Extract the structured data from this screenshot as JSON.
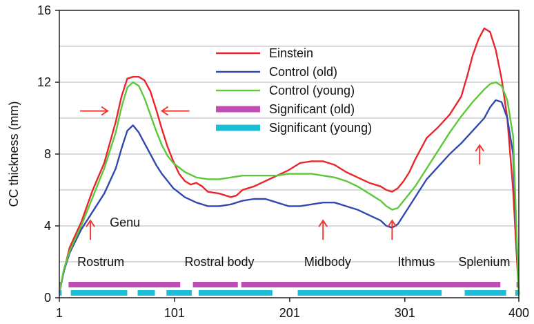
{
  "chart_data": {
    "type": "line",
    "xlabel": "",
    "ylabel": "CC thickness (mm)",
    "xlim": [
      1,
      400
    ],
    "ylim": [
      0,
      16
    ],
    "x_ticks": [
      1,
      101,
      201,
      301,
      400
    ],
    "y_ticks": [
      0,
      4,
      8,
      12,
      16
    ],
    "y_gridlines": [
      2,
      4,
      6,
      8,
      10,
      12,
      14
    ],
    "grid": "horizontal",
    "legend_position": "top-center",
    "series": [
      {
        "name": "Einstein",
        "color": "#e8262b",
        "x": [
          1,
          5,
          10,
          20,
          30,
          40,
          50,
          55,
          60,
          65,
          70,
          75,
          80,
          85,
          90,
          95,
          100,
          105,
          110,
          115,
          120,
          125,
          130,
          140,
          150,
          155,
          160,
          170,
          180,
          190,
          200,
          210,
          220,
          230,
          240,
          250,
          260,
          270,
          280,
          285,
          290,
          295,
          300,
          305,
          310,
          320,
          330,
          340,
          350,
          355,
          360,
          365,
          370,
          375,
          380,
          385,
          390,
          395,
          400
        ],
        "y": [
          0.3,
          1.5,
          2.8,
          4.2,
          6.0,
          7.5,
          9.8,
          11.2,
          12.2,
          12.3,
          12.3,
          12.1,
          11.5,
          10.5,
          9.4,
          8.4,
          7.6,
          6.9,
          6.5,
          6.3,
          6.4,
          6.2,
          5.9,
          5.8,
          5.6,
          5.7,
          6.0,
          6.2,
          6.5,
          6.8,
          7.1,
          7.5,
          7.6,
          7.6,
          7.4,
          7.0,
          6.7,
          6.4,
          6.2,
          6.0,
          5.9,
          6.1,
          6.5,
          7.0,
          7.7,
          8.9,
          9.5,
          10.2,
          11.2,
          12.3,
          13.5,
          14.4,
          15.0,
          14.8,
          13.8,
          12.2,
          10.0,
          6.0,
          0.2
        ]
      },
      {
        "name": "Control (old)",
        "color": "#3347b0",
        "x": [
          1,
          5,
          10,
          20,
          30,
          40,
          50,
          55,
          60,
          65,
          70,
          75,
          80,
          85,
          90,
          95,
          100,
          110,
          120,
          130,
          140,
          150,
          160,
          170,
          180,
          190,
          200,
          210,
          220,
          230,
          240,
          250,
          260,
          270,
          280,
          285,
          290,
          295,
          300,
          310,
          320,
          330,
          340,
          350,
          360,
          370,
          375,
          380,
          385,
          390,
          395,
          400
        ],
        "y": [
          0.3,
          1.5,
          2.5,
          3.8,
          4.8,
          5.8,
          7.2,
          8.3,
          9.3,
          9.6,
          9.2,
          8.6,
          8.0,
          7.4,
          6.9,
          6.5,
          6.1,
          5.6,
          5.3,
          5.1,
          5.1,
          5.2,
          5.4,
          5.5,
          5.5,
          5.3,
          5.1,
          5.1,
          5.2,
          5.3,
          5.3,
          5.1,
          4.9,
          4.6,
          4.3,
          4.0,
          3.9,
          4.1,
          4.6,
          5.6,
          6.6,
          7.3,
          8.0,
          8.6,
          9.3,
          10.0,
          10.6,
          11.0,
          10.9,
          10.0,
          8.0,
          0.2
        ]
      },
      {
        "name": "Control (young)",
        "color": "#5cc83a",
        "x": [
          1,
          5,
          10,
          20,
          30,
          40,
          50,
          55,
          60,
          65,
          70,
          75,
          80,
          85,
          90,
          95,
          100,
          110,
          120,
          130,
          140,
          150,
          160,
          170,
          180,
          190,
          200,
          210,
          220,
          230,
          240,
          250,
          260,
          270,
          280,
          285,
          290,
          295,
          300,
          310,
          320,
          330,
          340,
          350,
          360,
          370,
          375,
          380,
          385,
          390,
          395,
          400
        ],
        "y": [
          0.3,
          1.6,
          2.6,
          4.0,
          5.6,
          7.2,
          9.2,
          10.6,
          11.7,
          12.0,
          11.8,
          11.1,
          10.2,
          9.3,
          8.5,
          7.9,
          7.5,
          7.0,
          6.7,
          6.6,
          6.6,
          6.7,
          6.8,
          6.8,
          6.8,
          6.8,
          6.9,
          6.9,
          6.9,
          6.8,
          6.7,
          6.5,
          6.2,
          5.8,
          5.4,
          5.1,
          4.9,
          5.0,
          5.4,
          6.2,
          7.2,
          8.2,
          9.2,
          10.1,
          10.9,
          11.6,
          11.9,
          12.0,
          11.8,
          11.0,
          9.0,
          0.2
        ]
      }
    ],
    "significance_bars": [
      {
        "name": "Significant (old)",
        "color": "#c04db6",
        "segments": [
          [
            1,
            3
          ],
          [
            9,
            106
          ],
          [
            117,
            156
          ],
          [
            159,
            384
          ],
          [
            398,
            400
          ]
        ]
      },
      {
        "name": "Significant (young)",
        "color": "#1bbfd6",
        "segments": [
          [
            1,
            3
          ],
          [
            11,
            60
          ],
          [
            69,
            84
          ],
          [
            94,
            116
          ],
          [
            122,
            186
          ],
          [
            208,
            333
          ],
          [
            353,
            389
          ],
          [
            397,
            400
          ]
        ]
      }
    ],
    "annotations": [
      {
        "label": "Genu",
        "x": 58,
        "y": 4.2
      },
      {
        "label": "Rostrum",
        "x": 37,
        "y": 2.0
      },
      {
        "label": "Rostral body",
        "x": 140,
        "y": 2.0
      },
      {
        "label": "Midbody",
        "x": 234,
        "y": 2.0
      },
      {
        "label": "Ithmus",
        "x": 311,
        "y": 2.0
      },
      {
        "label": "Splenium",
        "x": 370,
        "y": 2.0
      }
    ],
    "arrows": [
      {
        "direction": "right",
        "x": 43,
        "y": 10.4
      },
      {
        "direction": "left",
        "x": 90,
        "y": 10.4
      },
      {
        "direction": "up",
        "x": 28,
        "y": 4.3
      },
      {
        "direction": "up",
        "x": 230,
        "y": 4.3
      },
      {
        "direction": "up",
        "x": 290,
        "y": 4.3
      },
      {
        "direction": "up",
        "x": 366,
        "y": 8.5
      }
    ],
    "arrow_color": "#ef3a36"
  }
}
